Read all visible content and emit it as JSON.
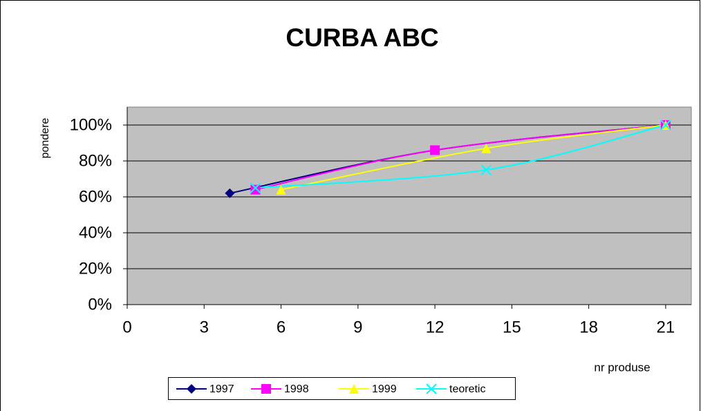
{
  "chart_data": {
    "type": "line",
    "title": "CURBA  ABC",
    "y_label": "pondere",
    "x_label": "nr produse",
    "xlim": [
      0,
      22
    ],
    "xticks": [
      0,
      3,
      6,
      9,
      12,
      15,
      18,
      21
    ],
    "ylim": [
      0,
      110
    ],
    "yticks": [
      {
        "value": 0,
        "label": "0%"
      },
      {
        "value": 20,
        "label": "20%"
      },
      {
        "value": 40,
        "label": "40%"
      },
      {
        "value": 60,
        "label": "60%"
      },
      {
        "value": 80,
        "label": "80%"
      },
      {
        "value": 100,
        "label": "100%"
      }
    ],
    "grid": true,
    "smooth": true,
    "legend": "bottom",
    "series": [
      {
        "name": "1997",
        "color": "#000080",
        "marker": "diamond",
        "x": [
          4,
          12,
          21
        ],
        "values": [
          62,
          86,
          100
        ]
      },
      {
        "name": "1998",
        "color": "#ff00ff",
        "marker": "square",
        "x": [
          5,
          12,
          21
        ],
        "values": [
          64,
          86,
          100
        ]
      },
      {
        "name": "1999",
        "color": "#ffff00",
        "marker": "triangle",
        "x": [
          6,
          14,
          21
        ],
        "values": [
          64,
          87,
          100
        ]
      },
      {
        "name": "teoretic",
        "color": "#00ffff",
        "marker": "x",
        "x": [
          5,
          14,
          21
        ],
        "values": [
          65,
          75,
          100
        ]
      }
    ]
  }
}
